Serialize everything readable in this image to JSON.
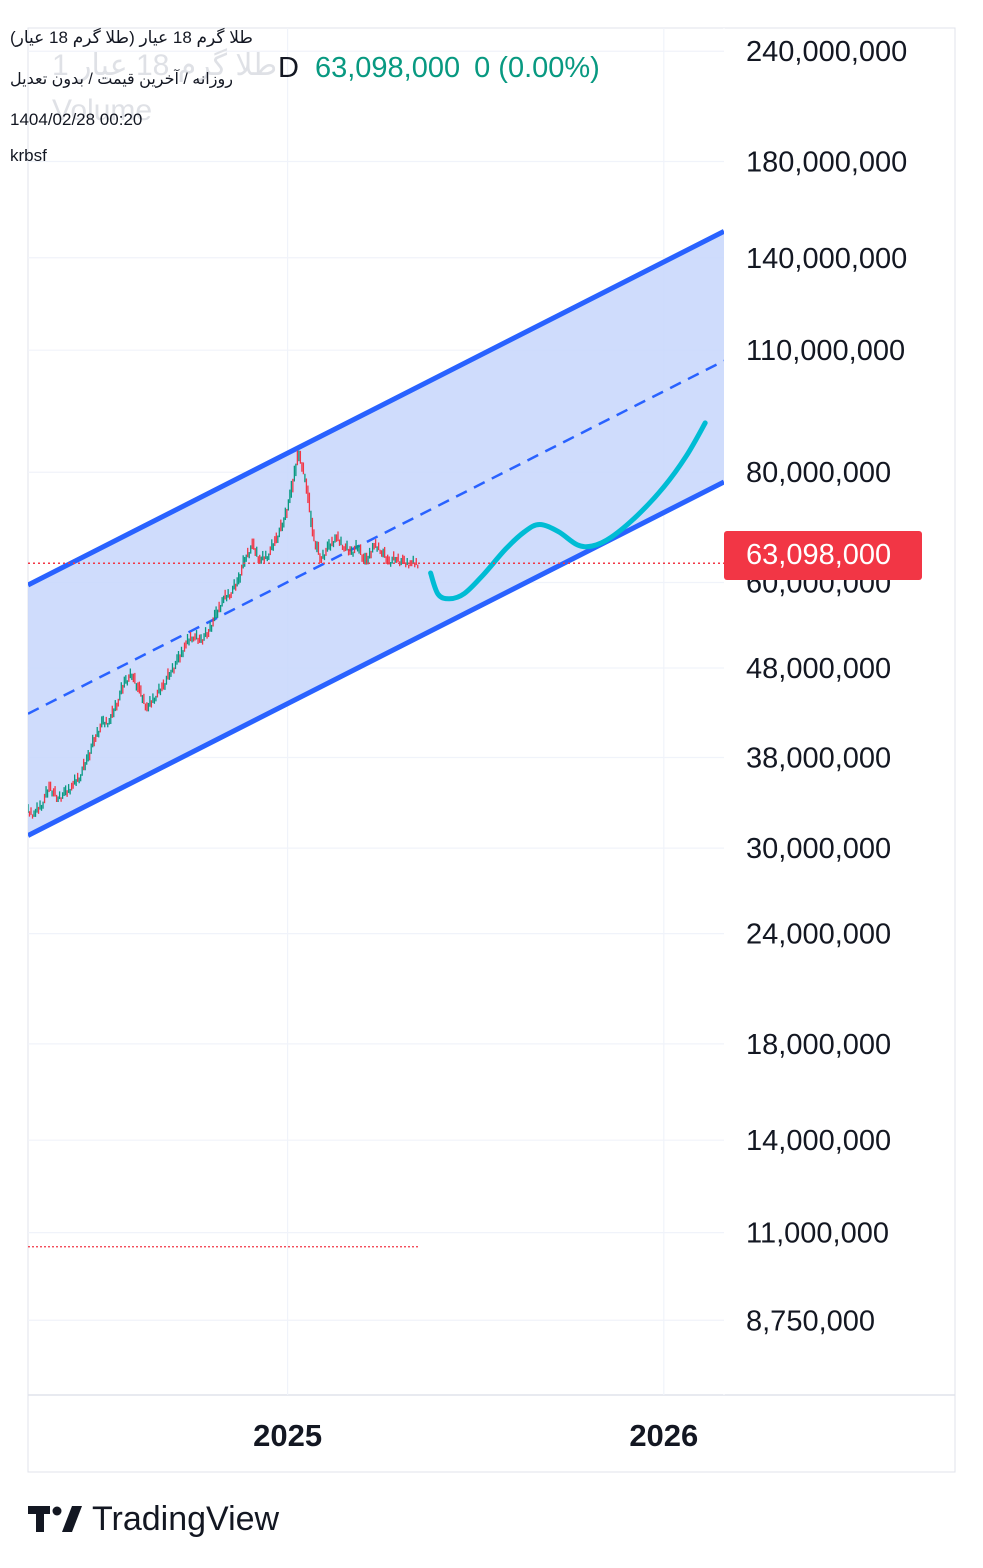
{
  "chart_data": {
    "type": "line",
    "header": {
      "symbol": "طلا گرم 18 عیار (طلا گرم 18 عیار)",
      "chart_type": "روزانه / آخرین قیمت / بدون تعدیل",
      "datetime": "1404/02/28 00:20",
      "author": "krbsf",
      "ghost_symbol": "طلا گرم 18 عیار 1",
      "ghost_volume": "Volume",
      "interval": "D",
      "last_price": "63,098,000",
      "change": "0 (0.00%)"
    },
    "y_scale": "log",
    "ylim": [
      7200000,
      255000000
    ],
    "xlim": [
      2024.31,
      2026.16
    ],
    "x_ticks": [
      {
        "value": 2025,
        "label": "2025"
      },
      {
        "value": 2026,
        "label": "2026"
      }
    ],
    "y_ticks": [
      {
        "value": 240000000,
        "label": "240,000,000"
      },
      {
        "value": 180000000,
        "label": "180,000,000"
      },
      {
        "value": 140000000,
        "label": "140,000,000"
      },
      {
        "value": 110000000,
        "label": "110,000,000"
      },
      {
        "value": 80000000,
        "label": "80,000,000"
      },
      {
        "value": 60000000,
        "label": "60,000,000"
      },
      {
        "value": 48000000,
        "label": "48,000,000"
      },
      {
        "value": 38000000,
        "label": "38,000,000"
      },
      {
        "value": 30000000,
        "label": "30,000,000"
      },
      {
        "value": 24000000,
        "label": "24,000,000"
      },
      {
        "value": 18000000,
        "label": "18,000,000"
      },
      {
        "value": 14000000,
        "label": "14,000,000"
      },
      {
        "value": 11000000,
        "label": "11,000,000"
      },
      {
        "value": 8750000,
        "label": "8,750,000"
      }
    ],
    "last_price_value": 63098000,
    "last_price_label": "63,098,000",
    "price_series": {
      "name": "",
      "x": [
        2024.31,
        2024.33,
        2024.35,
        2024.37,
        2024.39,
        2024.41,
        2024.43,
        2024.45,
        2024.47,
        2024.49,
        2024.51,
        2024.53,
        2024.55,
        2024.57,
        2024.59,
        2024.61,
        2024.63,
        2024.65,
        2024.67,
        2024.69,
        2024.71,
        2024.73,
        2024.75,
        2024.77,
        2024.79,
        2024.81,
        2024.83,
        2024.85,
        2024.87,
        2024.89,
        2024.91,
        2024.93,
        2024.95,
        2024.97,
        2024.99,
        2025.01,
        2025.03,
        2025.05,
        2025.07,
        2025.09,
        2025.11,
        2025.13,
        2025.15,
        2025.17,
        2025.19,
        2025.21,
        2025.23,
        2025.25,
        2025.27,
        2025.29,
        2025.31,
        2025.33,
        2025.35
      ],
      "y": [
        33000000,
        32800000,
        33700000,
        35200000,
        34200000,
        34500000,
        35300000,
        36200000,
        37800000,
        40000000,
        41500000,
        41800000,
        44000000,
        46300000,
        47200000,
        45000000,
        43200000,
        44600000,
        45600000,
        47400000,
        48800000,
        50900000,
        52300000,
        51500000,
        52600000,
        54800000,
        57300000,
        58400000,
        60000000,
        64000000,
        66000000,
        63500000,
        64500000,
        66800000,
        70000000,
        75000000,
        84000000,
        79000000,
        68000000,
        63800000,
        65500000,
        67500000,
        66200000,
        64800000,
        66000000,
        63000000,
        66000000,
        65500000,
        63200000,
        64000000,
        63098000,
        63098000,
        63098000
      ]
    },
    "volume_series": {
      "x": [
        2024.31,
        2025.35
      ],
      "y": [
        10600000,
        10600000
      ]
    },
    "channel": {
      "upper": [
        {
          "x": 2024.31,
          "y": 59600000
        },
        {
          "x": 2026.16,
          "y": 150000000
        }
      ],
      "mid": [
        {
          "x": 2024.31,
          "y": 42600000
        },
        {
          "x": 2026.16,
          "y": 107000000
        }
      ],
      "lower": [
        {
          "x": 2024.31,
          "y": 31000000
        },
        {
          "x": 2026.16,
          "y": 78000000
        }
      ]
    },
    "projection": {
      "x": [
        2025.38,
        2025.4,
        2025.43,
        2025.47,
        2025.52,
        2025.58,
        2025.63,
        2025.67,
        2025.72,
        2025.77,
        2025.81,
        2025.86,
        2025.93,
        2026.0,
        2026.06,
        2026.11
      ],
      "y": [
        61500000,
        58200000,
        57500000,
        58300000,
        61200000,
        65500000,
        68500000,
        69800000,
        68500000,
        66200000,
        66000000,
        67500000,
        71500000,
        77000000,
        83500000,
        91000000
      ]
    },
    "colors": {
      "up": "#089981",
      "down": "#f23645",
      "channel_line": "#2962ff",
      "channel_fill": "#c7d6fb",
      "projection": "#00bcd4",
      "grid": "#f0f3fa",
      "last_price": "#f23645"
    },
    "grid": true
  },
  "brand": {
    "name": "TradingView",
    "logo_icon": "tradingview-logo-icon"
  }
}
